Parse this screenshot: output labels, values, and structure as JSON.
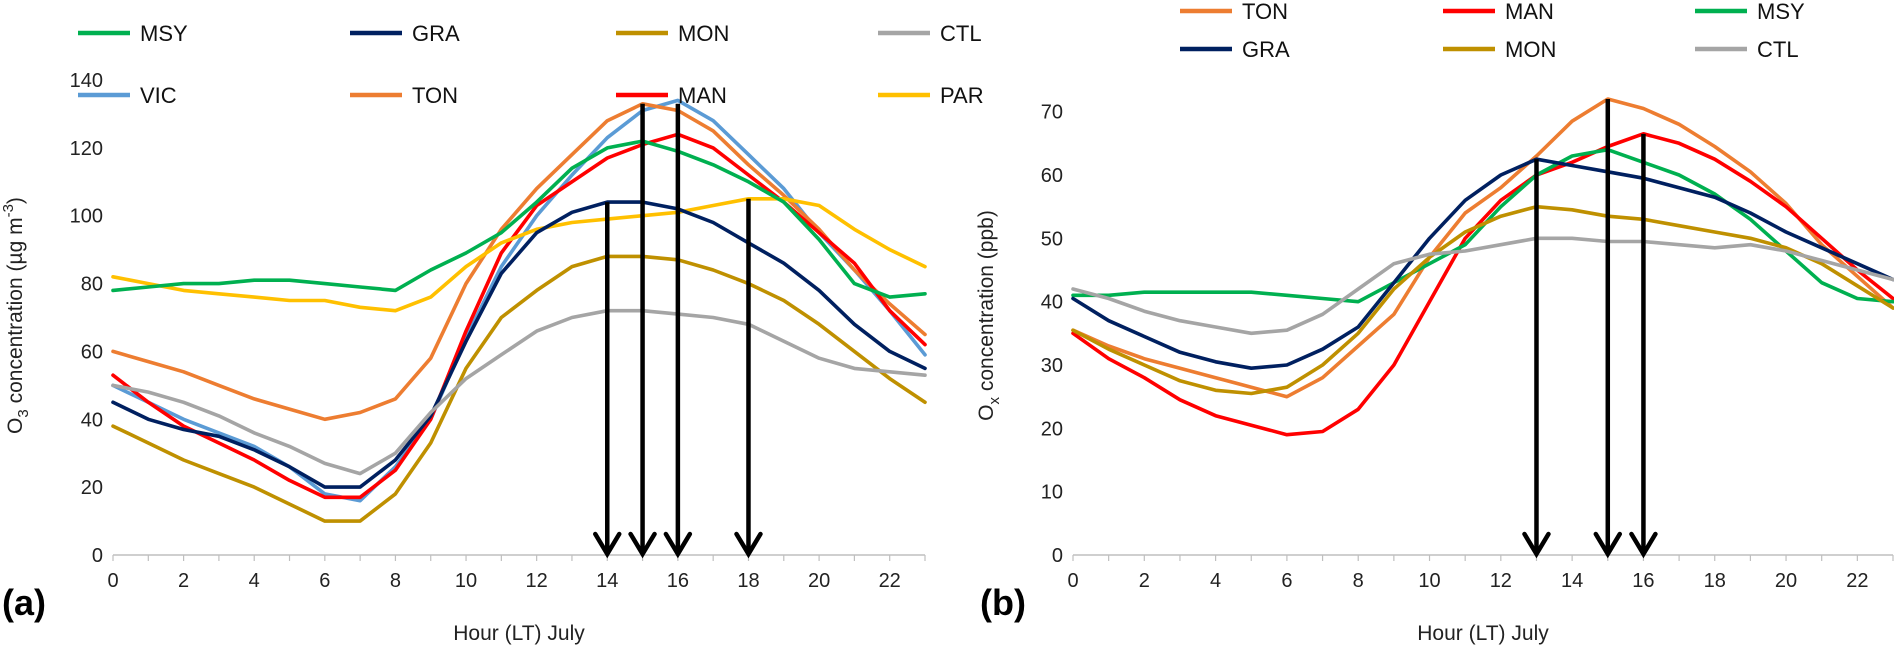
{
  "figure": {
    "panel_labels": [
      "(a)",
      "(b)"
    ]
  },
  "chart_data": [
    {
      "type": "line",
      "panel_label": "(a)",
      "xlabel": "Hour (LT) July",
      "ylabel": {
        "prefix": "O",
        "sub": "3",
        "mid": " concentration (µg m",
        "sup": "-3",
        "suffix": ")"
      },
      "xlim": [
        0,
        23
      ],
      "ylim": [
        0,
        140
      ],
      "xticks": [
        0,
        2,
        4,
        6,
        8,
        10,
        12,
        14,
        16,
        18,
        20,
        22
      ],
      "yticks": [
        0,
        20,
        40,
        60,
        80,
        100,
        120,
        140
      ],
      "x": [
        0,
        1,
        2,
        3,
        4,
        5,
        6,
        7,
        8,
        9,
        10,
        11,
        12,
        13,
        14,
        15,
        16,
        17,
        18,
        19,
        20,
        21,
        22,
        23
      ],
      "series": [
        {
          "name": "VIC",
          "color": "#5B9BD5",
          "values": [
            50,
            45,
            40,
            36,
            32,
            26,
            18,
            16,
            26,
            40,
            64,
            85,
            100,
            112,
            123,
            131,
            134,
            128,
            118,
            108,
            95,
            84,
            72,
            59
          ]
        },
        {
          "name": "TON",
          "color": "#ED7D31",
          "values": [
            60,
            57,
            54,
            50,
            46,
            43,
            40,
            42,
            46,
            58,
            80,
            96,
            108,
            118,
            128,
            133,
            131,
            125,
            115,
            106,
            96,
            84,
            74,
            65
          ]
        },
        {
          "name": "MAN",
          "color": "#FF0000",
          "values": [
            53,
            45,
            38,
            33,
            28,
            22,
            17,
            17,
            25,
            40,
            66,
            89,
            103,
            110,
            117,
            121,
            124,
            120,
            112,
            104,
            95,
            86,
            72,
            62
          ]
        },
        {
          "name": "PAR",
          "color": "#FFC000",
          "values": [
            82,
            80,
            78,
            77,
            76,
            75,
            75,
            73,
            72,
            76,
            85,
            92,
            96,
            98,
            99,
            100,
            101,
            103,
            105,
            105,
            103,
            96,
            90,
            85
          ]
        },
        {
          "name": "MSY",
          "color": "#00B050",
          "values": [
            78,
            79,
            80,
            80,
            81,
            81,
            80,
            79,
            78,
            84,
            89,
            95,
            104,
            114,
            120,
            122,
            119,
            115,
            110,
            104,
            93,
            80,
            76,
            77
          ]
        },
        {
          "name": "GRA",
          "color": "#002060",
          "values": [
            45,
            40,
            37,
            35,
            31,
            26,
            20,
            20,
            28,
            41,
            63,
            83,
            95,
            101,
            104,
            104,
            102,
            98,
            92,
            86,
            78,
            68,
            60,
            55
          ]
        },
        {
          "name": "MON",
          "color": "#BF9000",
          "values": [
            38,
            33,
            28,
            24,
            20,
            15,
            10,
            10,
            18,
            33,
            55,
            70,
            78,
            85,
            88,
            88,
            87,
            84,
            80,
            75,
            68,
            60,
            52,
            45
          ]
        },
        {
          "name": "CTL",
          "color": "#A5A5A5",
          "values": [
            50,
            48,
            45,
            41,
            36,
            32,
            27,
            24,
            30,
            42,
            52,
            59,
            66,
            70,
            72,
            72,
            71,
            70,
            68,
            63,
            58,
            55,
            54,
            53
          ]
        }
      ],
      "arrows": [
        {
          "x": 14,
          "from_y": 104
        },
        {
          "x": 15,
          "from_y": 133
        },
        {
          "x": 16,
          "from_y": 133
        },
        {
          "x": 18,
          "from_y": 105
        }
      ],
      "legend": [
        "VIC",
        "TON",
        "MAN",
        "PAR",
        "MSY",
        "GRA",
        "MON",
        "CTL"
      ]
    },
    {
      "type": "line",
      "panel_label": "(b)",
      "xlabel": "Hour (LT) July",
      "ylabel": {
        "prefix": "O",
        "sub": "x",
        "mid": " concentration (ppb)",
        "sup": "",
        "suffix": ""
      },
      "xlim": [
        0,
        23
      ],
      "ylim": [
        0,
        75
      ],
      "xticks": [
        0,
        2,
        4,
        6,
        8,
        10,
        12,
        14,
        16,
        18,
        20,
        22
      ],
      "yticks": [
        0,
        10,
        20,
        30,
        40,
        50,
        60,
        70
      ],
      "x": [
        0,
        1,
        2,
        3,
        4,
        5,
        6,
        7,
        8,
        9,
        10,
        11,
        12,
        13,
        14,
        15,
        16,
        17,
        18,
        19,
        20,
        21,
        22,
        23
      ],
      "series": [
        {
          "name": "TON",
          "color": "#ED7D31",
          "values": [
            35.5,
            33,
            31,
            29.5,
            28,
            26.5,
            25,
            28,
            33,
            38,
            47,
            54,
            58,
            63,
            68.5,
            72,
            70.5,
            68,
            64.5,
            60.5,
            55.5,
            49,
            44,
            39
          ]
        },
        {
          "name": "MAN",
          "color": "#FF0000",
          "values": [
            35,
            31,
            28,
            24.5,
            22,
            20.5,
            19,
            19.5,
            23,
            30,
            40,
            50,
            56,
            60,
            62,
            64.5,
            66.5,
            65,
            62.5,
            59,
            55,
            50,
            45,
            40.5
          ]
        },
        {
          "name": "MSY",
          "color": "#00B050",
          "values": [
            41,
            41,
            41.5,
            41.5,
            41.5,
            41.5,
            41,
            40.5,
            40,
            43,
            46,
            49,
            55,
            60,
            63,
            64,
            62,
            60,
            57,
            53,
            48,
            43,
            40.5,
            40
          ]
        },
        {
          "name": "GRA",
          "color": "#002060",
          "values": [
            40.5,
            37,
            34.5,
            32,
            30.5,
            29.5,
            30,
            32.5,
            36,
            43,
            50,
            56,
            60,
            62.5,
            61.5,
            60.5,
            59.5,
            58,
            56.5,
            54,
            51,
            48.5,
            46,
            43.5
          ]
        },
        {
          "name": "MON",
          "color": "#BF9000",
          "values": [
            35.5,
            32.5,
            30,
            27.5,
            26,
            25.5,
            26.5,
            30,
            35,
            42,
            47,
            51,
            53.5,
            55,
            54.5,
            53.5,
            53,
            52,
            51,
            50,
            48.5,
            46,
            42.5,
            39
          ]
        },
        {
          "name": "CTL",
          "color": "#A5A5A5",
          "values": [
            42,
            40.5,
            38.5,
            37,
            36,
            35,
            35.5,
            38,
            42,
            46,
            47.5,
            48,
            49,
            50,
            50,
            49.5,
            49.5,
            49,
            48.5,
            49,
            48,
            46.5,
            45,
            43.5
          ]
        }
      ],
      "arrows": [
        {
          "x": 13,
          "from_y": 62.5
        },
        {
          "x": 15,
          "from_y": 72
        },
        {
          "x": 16,
          "from_y": 66.5
        }
      ],
      "legend": [
        "TON",
        "MAN",
        "MSY",
        "GRA",
        "MON",
        "CTL"
      ]
    }
  ]
}
